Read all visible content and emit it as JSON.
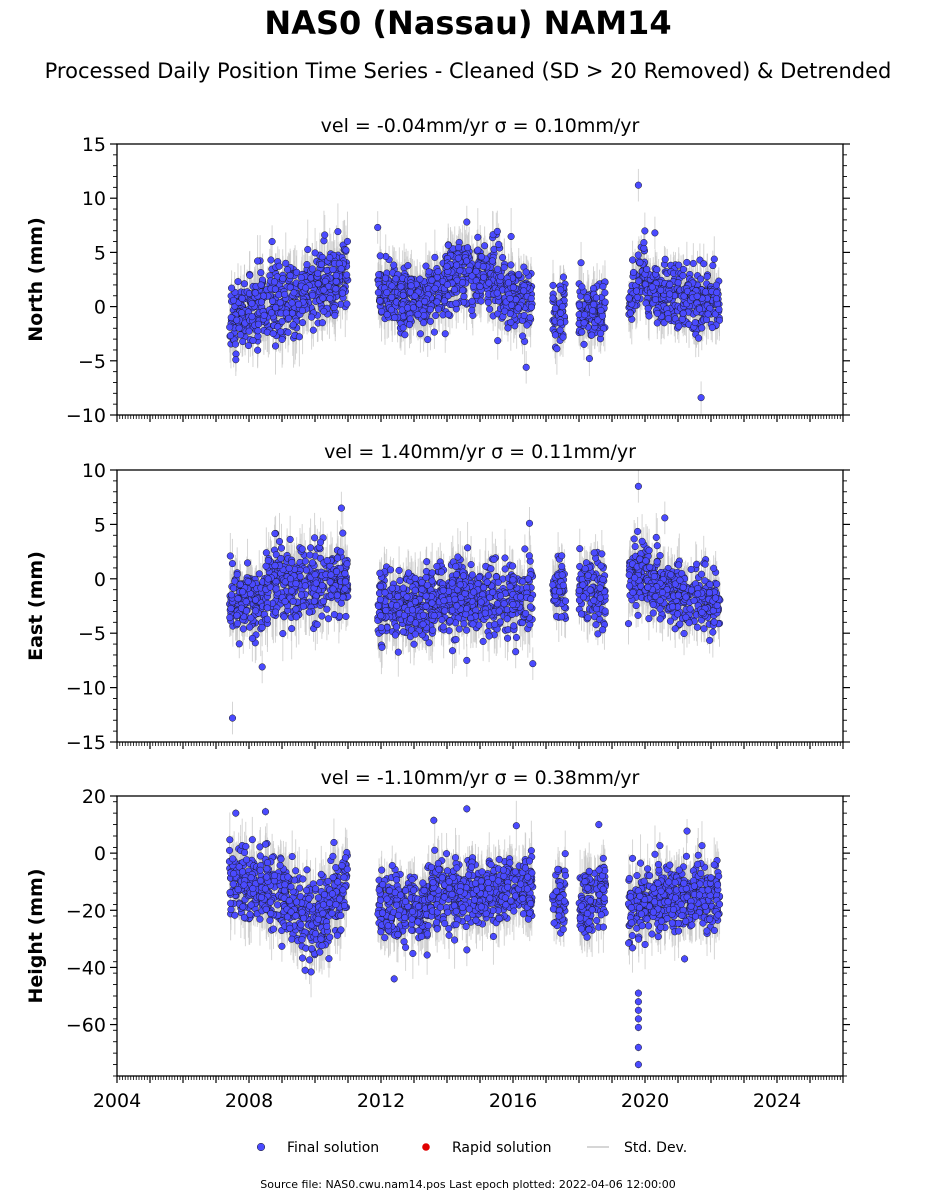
{
  "title": "NAS0 (Nassau) NAM14",
  "subtitle": "Processed Daily Position Time Series - Cleaned (SD > 20 Removed) & Detrended",
  "footer": "Source file: NAS0.cwu.nam14.pos  Last epoch plotted: 2022-04-06 12:00:00",
  "colors": {
    "final_solution": "#4a4aff",
    "rapid_solution": "#e00000",
    "std_dev": "#c8c8c8",
    "marker_edge": "#1a1a1a"
  },
  "legend": [
    {
      "label": "Final solution",
      "marker": "circle",
      "color": "#4a4aff"
    },
    {
      "label": "Rapid solution",
      "marker": "circle",
      "color": "#e00000"
    },
    {
      "label": "Std. Dev.",
      "marker": "line",
      "color": "#c8c8c8"
    }
  ],
  "chart_data": [
    {
      "type": "scatter",
      "title": "vel = -0.04mm/yr   σ = 0.10mm/yr",
      "ylabel": "North (mm)",
      "xlim": [
        2004,
        2026
      ],
      "ylim": [
        -10,
        15
      ],
      "yticks": [
        -10,
        -5,
        0,
        5,
        10,
        15
      ],
      "xticks": [
        2004,
        2008,
        2012,
        2016,
        2020,
        2024
      ],
      "show_xtick_labels": false,
      "segments": [
        {
          "x": [
            2007.4,
            2008.0
          ],
          "y": [
            -1.2,
            -0.3
          ],
          "spread": 1.7
        },
        {
          "x": [
            2008.0,
            2009.5
          ],
          "y": [
            -0.3,
            0.8
          ],
          "spread": 1.9
        },
        {
          "x": [
            2009.5,
            2011.0
          ],
          "y": [
            0.8,
            2.8
          ],
          "spread": 2.0
        },
        {
          "x": [
            2011.9,
            2012.8
          ],
          "y": [
            1.8,
            0.5
          ],
          "spread": 1.8
        },
        {
          "x": [
            2012.8,
            2014.0
          ],
          "y": [
            0.5,
            1.8
          ],
          "spread": 1.8
        },
        {
          "x": [
            2014.0,
            2015.5
          ],
          "y": [
            2.8,
            3.0
          ],
          "spread": 1.8
        },
        {
          "x": [
            2015.5,
            2016.6
          ],
          "y": [
            2.0,
            0.4
          ],
          "spread": 1.8
        },
        {
          "x": [
            2017.2,
            2017.6
          ],
          "y": [
            -0.5,
            -0.2
          ],
          "spread": 1.6
        },
        {
          "x": [
            2018.0,
            2018.8
          ],
          "y": [
            -0.6,
            -0.4
          ],
          "spread": 1.6
        },
        {
          "x": [
            2019.5,
            2020.0
          ],
          "y": [
            -0.5,
            4.0
          ],
          "spread": 1.6
        },
        {
          "x": [
            2020.0,
            2021.0
          ],
          "y": [
            2.0,
            0.3
          ],
          "spread": 1.6
        },
        {
          "x": [
            2021.0,
            2022.27
          ],
          "y": [
            0.6,
            0.5
          ],
          "spread": 1.6
        }
      ],
      "outliers": [
        {
          "x": 2019.8,
          "y": 11.2
        },
        {
          "x": 2021.7,
          "y": -8.4
        },
        {
          "x": 2016.4,
          "y": -5.6
        },
        {
          "x": 2020.3,
          "y": 6.8
        },
        {
          "x": 2008.7,
          "y": 6.0
        },
        {
          "x": 2011.9,
          "y": 7.3
        },
        {
          "x": 2014.6,
          "y": 7.8
        },
        {
          "x": 2007.6,
          "y": -4.9
        }
      ]
    },
    {
      "type": "scatter",
      "title": "vel = 1.40mm/yr   σ = 0.11mm/yr",
      "ylabel": "East (mm)",
      "xlim": [
        2004,
        2026
      ],
      "ylim": [
        -15,
        10
      ],
      "yticks": [
        -15,
        -10,
        -5,
        0,
        5,
        10
      ],
      "xticks": [
        2004,
        2008,
        2012,
        2016,
        2020,
        2024
      ],
      "show_xtick_labels": false,
      "segments": [
        {
          "x": [
            2007.4,
            2008.5
          ],
          "y": [
            -2.2,
            -2.0
          ],
          "spread": 1.7
        },
        {
          "x": [
            2008.5,
            2011.0
          ],
          "y": [
            -0.6,
            0.0
          ],
          "spread": 1.9
        },
        {
          "x": [
            2011.9,
            2016.6
          ],
          "y": [
            -2.6,
            -1.6
          ],
          "spread": 1.9
        },
        {
          "x": [
            2017.2,
            2017.6
          ],
          "y": [
            -0.8,
            -1.2
          ],
          "spread": 1.6
        },
        {
          "x": [
            2018.0,
            2018.8
          ],
          "y": [
            -0.6,
            -1.3
          ],
          "spread": 1.6
        },
        {
          "x": [
            2019.5,
            2020.0
          ],
          "y": [
            -0.5,
            1.0
          ],
          "spread": 1.7
        },
        {
          "x": [
            2020.0,
            2022.27
          ],
          "y": [
            0.2,
            -2.8
          ],
          "spread": 1.7
        }
      ],
      "outliers": [
        {
          "x": 2007.5,
          "y": -12.8
        },
        {
          "x": 2019.8,
          "y": 8.5
        },
        {
          "x": 2010.8,
          "y": 6.5
        },
        {
          "x": 2016.5,
          "y": 5.1
        },
        {
          "x": 2016.6,
          "y": -7.8
        },
        {
          "x": 2014.6,
          "y": -7.5
        },
        {
          "x": 2020.6,
          "y": 5.6
        },
        {
          "x": 2008.4,
          "y": -8.1
        }
      ]
    },
    {
      "type": "scatter",
      "title": "vel = -1.10mm/yr   σ = 0.38mm/yr",
      "ylabel": "Height (mm)",
      "xlim": [
        2004,
        2026
      ],
      "ylim": [
        -78,
        20
      ],
      "yticks": [
        -60,
        -40,
        -20,
        0,
        20
      ],
      "xticks": [
        2004,
        2008,
        2012,
        2016,
        2020,
        2024
      ],
      "show_xtick_labels": true,
      "segments": [
        {
          "x": [
            2007.4,
            2008.3
          ],
          "y": [
            -8,
            -14
          ],
          "spread": 7.0
        },
        {
          "x": [
            2008.3,
            2010.0
          ],
          "y": [
            -10,
            -24
          ],
          "spread": 7.5
        },
        {
          "x": [
            2010.0,
            2011.0
          ],
          "y": [
            -22,
            -12
          ],
          "spread": 7.5
        },
        {
          "x": [
            2011.9,
            2013.5
          ],
          "y": [
            -18,
            -20
          ],
          "spread": 7.0
        },
        {
          "x": [
            2013.5,
            2016.6
          ],
          "y": [
            -14,
            -13
          ],
          "spread": 7.0
        },
        {
          "x": [
            2017.2,
            2017.6
          ],
          "y": [
            -18,
            -17
          ],
          "spread": 6.0
        },
        {
          "x": [
            2018.0,
            2018.8
          ],
          "y": [
            -20,
            -12
          ],
          "spread": 7.0
        },
        {
          "x": [
            2019.5,
            2022.27
          ],
          "y": [
            -18,
            -13
          ],
          "spread": 7.0
        }
      ],
      "outliers": [
        {
          "x": 2019.8,
          "y": -49
        },
        {
          "x": 2019.8,
          "y": -52
        },
        {
          "x": 2019.8,
          "y": -55
        },
        {
          "x": 2019.8,
          "y": -58
        },
        {
          "x": 2019.8,
          "y": -61
        },
        {
          "x": 2019.8,
          "y": -68
        },
        {
          "x": 2019.8,
          "y": -74
        },
        {
          "x": 2008.5,
          "y": 14.5
        },
        {
          "x": 2007.6,
          "y": 14.0
        },
        {
          "x": 2014.6,
          "y": 15.5
        },
        {
          "x": 2013.6,
          "y": 11.5
        },
        {
          "x": 2018.6,
          "y": 10.0
        },
        {
          "x": 2012.4,
          "y": -44
        },
        {
          "x": 2009.7,
          "y": -41
        },
        {
          "x": 2021.2,
          "y": -37
        }
      ]
    }
  ]
}
